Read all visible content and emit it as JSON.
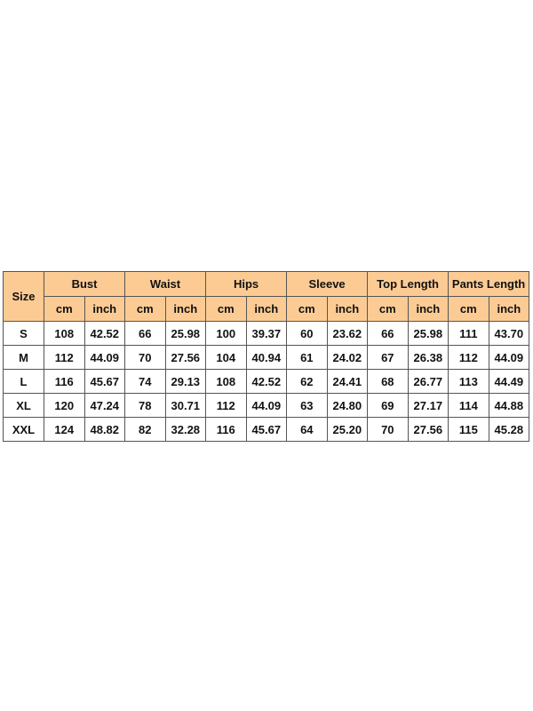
{
  "header_color": "#FCCB94",
  "size_label": "Size",
  "groups": [
    "Bust",
    "Waist",
    "Hips",
    "Sleeve",
    "Top Length",
    "Pants Length"
  ],
  "units": [
    "cm",
    "inch"
  ],
  "rows": [
    {
      "size": "S",
      "values": [
        "108",
        "42.52",
        "66",
        "25.98",
        "100",
        "39.37",
        "60",
        "23.62",
        "66",
        "25.98",
        "111",
        "43.70"
      ]
    },
    {
      "size": "M",
      "values": [
        "112",
        "44.09",
        "70",
        "27.56",
        "104",
        "40.94",
        "61",
        "24.02",
        "67",
        "26.38",
        "112",
        "44.09"
      ]
    },
    {
      "size": "L",
      "values": [
        "116",
        "45.67",
        "74",
        "29.13",
        "108",
        "42.52",
        "62",
        "24.41",
        "68",
        "26.77",
        "113",
        "44.49"
      ]
    },
    {
      "size": "XL",
      "values": [
        "120",
        "47.24",
        "78",
        "30.71",
        "112",
        "44.09",
        "63",
        "24.80",
        "69",
        "27.17",
        "114",
        "44.88"
      ]
    },
    {
      "size": "XXL",
      "values": [
        "124",
        "48.82",
        "82",
        "32.28",
        "116",
        "45.67",
        "64",
        "25.20",
        "70",
        "27.56",
        "115",
        "45.28"
      ]
    }
  ]
}
